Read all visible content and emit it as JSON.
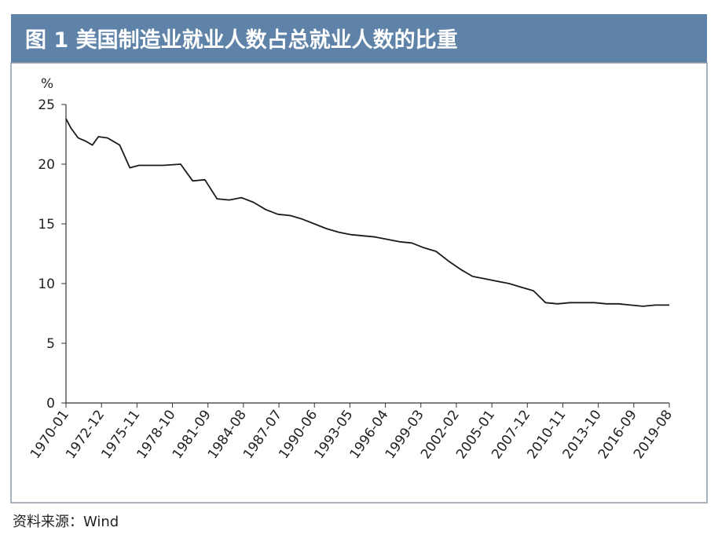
{
  "chart_data": {
    "type": "line",
    "title": "图 1  美国制造业就业人数占总就业人数的比重",
    "y_unit": "%",
    "source": "资料来源：Wind",
    "color": "#1a1a1a",
    "x": [
      "1970-01",
      "1970-06",
      "1971-01",
      "1971-09",
      "1972-03",
      "1972-09",
      "1973-06",
      "1974-06",
      "1975-04",
      "1976-01",
      "1978-01",
      "1979-06",
      "1980-06",
      "1981-06",
      "1982-06",
      "1983-06",
      "1984-06",
      "1985-06",
      "1986-06",
      "1987-06",
      "1988-06",
      "1989-06",
      "1990-06",
      "1991-06",
      "1992-06",
      "1993-06",
      "1994-06",
      "1995-06",
      "1996-06",
      "1997-06",
      "1998-06",
      "1999-06",
      "2000-06",
      "2001-06",
      "2002-06",
      "2003-06",
      "2004-06",
      "2005-06",
      "2006-06",
      "2007-06",
      "2008-06",
      "2009-06",
      "2010-06",
      "2011-06",
      "2012-06",
      "2013-06",
      "2014-06",
      "2015-06",
      "2016-06",
      "2017-06",
      "2018-06",
      "2019-08"
    ],
    "values": [
      23.8,
      23.0,
      22.2,
      21.9,
      21.6,
      22.3,
      22.2,
      21.6,
      19.7,
      19.9,
      19.9,
      20.0,
      18.6,
      18.7,
      17.1,
      17.0,
      17.2,
      16.8,
      16.2,
      15.8,
      15.7,
      15.4,
      15.0,
      14.6,
      14.3,
      14.1,
      14.0,
      13.9,
      13.7,
      13.5,
      13.4,
      13.0,
      12.7,
      11.9,
      11.2,
      10.6,
      10.4,
      10.2,
      10.0,
      9.7,
      9.4,
      8.4,
      8.3,
      8.4,
      8.4,
      8.4,
      8.3,
      8.3,
      8.2,
      8.1,
      8.2,
      8.2
    ],
    "xticks": [
      "1970-01",
      "1972-12",
      "1975-11",
      "1978-10",
      "1981-09",
      "1984-08",
      "1987-07",
      "1990-06",
      "1993-05",
      "1996-04",
      "1999-03",
      "2002-02",
      "2005-01",
      "2007-12",
      "2010-11",
      "2013-10",
      "2016-09",
      "2019-08"
    ],
    "ylim": [
      0,
      25
    ],
    "yticks": [
      0,
      5,
      10,
      15,
      20,
      25
    ],
    "grid": false
  }
}
